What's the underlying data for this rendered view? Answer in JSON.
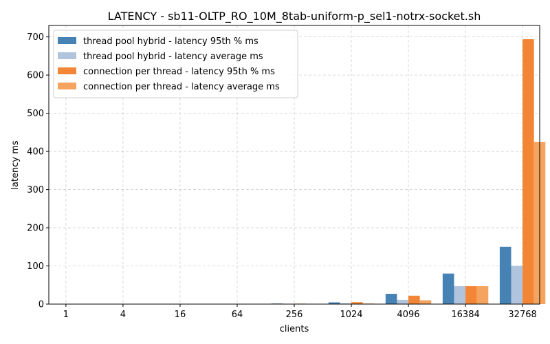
{
  "chart_data": {
    "type": "bar",
    "title": "LATENCY - sb11-OLTP_RO_10M_8tab-uniform-p_sel1-notrx-socket.sh",
    "xlabel": "clients",
    "ylabel": "latency ms",
    "categories": [
      "1",
      "4",
      "16",
      "64",
      "256",
      "1024",
      "4096",
      "16384",
      "32768"
    ],
    "ylim": [
      0,
      730
    ],
    "yticks": [
      0,
      100,
      200,
      300,
      400,
      500,
      600,
      700
    ],
    "grid": true,
    "legend_position": "top-left",
    "series": [
      {
        "name": "thread pool hybrid - latency 95th % ms",
        "color": "#4682b4",
        "values": [
          0.2,
          0.2,
          0.3,
          0.5,
          1.5,
          4.5,
          27,
          80,
          150
        ]
      },
      {
        "name": "thread pool hybrid - latency average ms",
        "color": "#b0c4de",
        "values": [
          0.1,
          0.1,
          0.2,
          0.3,
          0.8,
          2.0,
          11,
          47,
          100
        ]
      },
      {
        "name": "connection per thread - latency 95th % ms",
        "color": "#f28636",
        "values": [
          0.3,
          0.2,
          0.3,
          0.5,
          1.2,
          5.0,
          22,
          47,
          694
        ]
      },
      {
        "name": "connection per thread - latency average ms",
        "color": "#f5a460",
        "values": [
          0.2,
          0.1,
          0.2,
          0.3,
          0.8,
          1.5,
          10,
          47,
          425
        ]
      }
    ]
  }
}
